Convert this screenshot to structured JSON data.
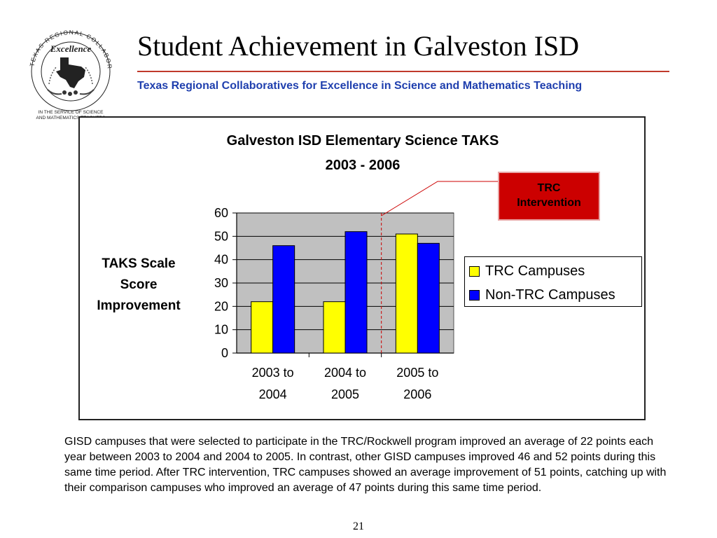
{
  "slide": {
    "title": "Student Achievement in Galveston ISD",
    "subtitle": "Texas Regional Collaboratives for Excellence in Science and Mathematics Teaching",
    "page_number": "21",
    "caption": "GISD campuses that were selected to participate in the TRC/Rockwell program improved an average of 22 points each year between 2003 to 2004 and 2004 to 2005. In contrast, other GISD campuses improved 46 and 52 points during this same time period. After TRC intervention, TRC campuses showed an average improvement of 51 points, catching up with their comparison campuses who improved an average of 47 points during this same time period."
  },
  "logo": {
    "arc_text": "TEXAS REGIONAL COLLABORATIVES",
    "script_text": "Excellence",
    "tagline_line1": "IN THE SERVICE OF SCIENCE",
    "tagline_line2": "AND MATHEMATICS TEACHERS"
  },
  "callout": {
    "line1": "TRC",
    "line2": "Intervention"
  },
  "colors": {
    "trc": "#ffff00",
    "non_trc": "#0000ff",
    "plot_bg": "#c0c0c0",
    "callout_bg": "#cc0000",
    "subtitle": "#1f3fae",
    "rule": "#c0392b"
  },
  "chart_data": {
    "type": "bar",
    "title_line1": "Galveston ISD Elementary Science TAKS",
    "title_line2": "2003 - 2006",
    "ylabel_lines": [
      "TAKS Scale",
      "Score",
      "Improvement"
    ],
    "xlabel": "",
    "categories": [
      [
        "2003 to",
        "2004"
      ],
      [
        "2004 to",
        "2005"
      ],
      [
        "2005 to",
        "2006"
      ]
    ],
    "series": [
      {
        "name": "TRC Campuses",
        "values": [
          22,
          22,
          51
        ]
      },
      {
        "name": "Non-TRC Campuses",
        "values": [
          46,
          52,
          47
        ]
      }
    ],
    "ylim": [
      0,
      60
    ],
    "yticks": [
      0,
      10,
      20,
      30,
      40,
      50,
      60
    ],
    "grid": true,
    "legend_position": "right",
    "annotation": "dashed vertical line between 2004 to 2005 and 2005 to 2006 marking TRC intervention"
  }
}
